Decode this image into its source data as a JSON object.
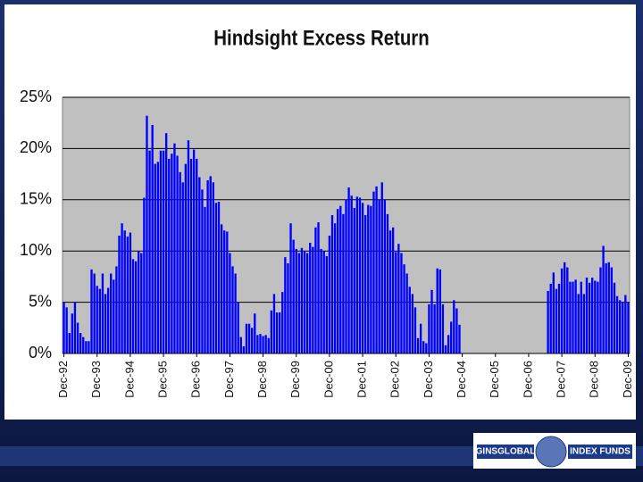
{
  "chart_data": {
    "type": "bar",
    "title": "Hindsight Excess Return",
    "categories": [
      "Dec-92",
      null,
      null,
      null,
      null,
      null,
      null,
      null,
      null,
      null,
      null,
      null,
      "Dec-93",
      null,
      null,
      null,
      null,
      null,
      null,
      null,
      null,
      null,
      null,
      null,
      "Dec-94",
      null,
      null,
      null,
      null,
      null,
      null,
      null,
      null,
      null,
      null,
      null,
      "Dec-95",
      null,
      null,
      null,
      null,
      null,
      null,
      null,
      null,
      null,
      null,
      null,
      "Dec-96",
      null,
      null,
      null,
      null,
      null,
      null,
      null,
      null,
      null,
      null,
      null,
      "Dec-97",
      null,
      null,
      null,
      null,
      null,
      null,
      null,
      null,
      null,
      null,
      null,
      "Dec-98",
      null,
      null,
      null,
      null,
      null,
      null,
      null,
      null,
      null,
      null,
      null,
      "Dec-99",
      null,
      null,
      null,
      null,
      null,
      null,
      null,
      null,
      null,
      null,
      null,
      "Dec-00",
      null,
      null,
      null,
      null,
      null,
      null,
      null,
      null,
      null,
      null,
      null,
      "Dec-01",
      null,
      null,
      null,
      null,
      null,
      null,
      null,
      null,
      null,
      null,
      null,
      "Dec-02",
      null,
      null,
      null,
      null,
      null,
      null,
      null,
      null,
      null,
      null,
      null,
      "Dec-03",
      null,
      null,
      null,
      null,
      null,
      null,
      null,
      null,
      null,
      null,
      null,
      "Dec-04",
      null,
      null,
      null,
      null,
      null,
      null,
      null,
      null,
      null,
      null,
      null,
      "Dec-05",
      null,
      null,
      null,
      null,
      null,
      null,
      null,
      null,
      null,
      null,
      null,
      "Dec-06",
      null,
      null,
      null,
      null,
      null,
      null,
      null,
      null,
      null,
      null,
      null,
      "Dec-07",
      null,
      null,
      null,
      null,
      null,
      null,
      null,
      null,
      null,
      null,
      null,
      "Dec-08",
      null,
      null,
      null,
      null,
      null,
      null,
      null,
      null,
      null,
      null,
      null,
      "Dec-09"
    ],
    "values": [
      5.0,
      4.5,
      2.0,
      3.9,
      5.0,
      3.0,
      2.0,
      1.6,
      1.2,
      1.2,
      8.2,
      7.8,
      6.6,
      6.3,
      7.8,
      5.8,
      6.4,
      7.8,
      7.2,
      8.5,
      11.5,
      12.7,
      12.0,
      11.4,
      11.8,
      9.2,
      9.0,
      10.0,
      9.8,
      15.2,
      23.2,
      19.8,
      22.3,
      18.5,
      18.7,
      19.8,
      19.8,
      21.5,
      19.0,
      19.5,
      20.5,
      19.3,
      17.7,
      16.7,
      18.5,
      20.8,
      19.0,
      19.9,
      19.0,
      17.2,
      16.0,
      14.3,
      16.9,
      17.3,
      16.7,
      14.7,
      14.8,
      12.6,
      12.0,
      11.9,
      9.8,
      8.5,
      7.8,
      5.0,
      1.6,
      0.7,
      2.9,
      2.9,
      2.5,
      3.9,
      1.8,
      1.9,
      1.7,
      1.8,
      1.5,
      4.2,
      5.8,
      4.0,
      4.0,
      6.0,
      9.4,
      8.8,
      12.7,
      11.1,
      10.2,
      9.8,
      10.3,
      10.0,
      9.8,
      10.8,
      10.4,
      12.3,
      12.8,
      10.2,
      10.0,
      9.5,
      11.5,
      13.5,
      12.7,
      14.1,
      14.4,
      13.6,
      15.0,
      16.2,
      15.4,
      14.2,
      15.3,
      15.2,
      14.7,
      13.5,
      14.5,
      14.4,
      15.8,
      16.3,
      15.0,
      16.7,
      15.0,
      13.6,
      12.0,
      12.3,
      9.9,
      10.7,
      9.8,
      8.7,
      7.8,
      6.5,
      5.8,
      4.5,
      1.5,
      2.9,
      1.2,
      1.0,
      4.8,
      6.2,
      4.8,
      8.3,
      8.2,
      4.8,
      0.8,
      1.8,
      3.1,
      5.2,
      4.4,
      2.8,
      null,
      null,
      null,
      null,
      null,
      null,
      null,
      null,
      null,
      null,
      null,
      null,
      null,
      null,
      null,
      null,
      null,
      null,
      null,
      null,
      null,
      null,
      null,
      null,
      null,
      null,
      null,
      null,
      null,
      null,
      null,
      6.1,
      6.8,
      7.9,
      6.3,
      6.8,
      8.3,
      8.9,
      8.4,
      7.0,
      7.0,
      7.2,
      5.8,
      7.0,
      5.8,
      7.4,
      6.9,
      7.4,
      7.1,
      7.0,
      8.4,
      10.5,
      8.8,
      8.9,
      8.4,
      6.9,
      5.6,
      5.2,
      5.0,
      5.7,
      5.0
    ],
    "color": "#0000ff",
    "ylim": [
      0,
      25
    ],
    "yticks": [
      {
        "value": 0,
        "label": "0%"
      },
      {
        "value": 5,
        "label": "5%"
      },
      {
        "value": 10,
        "label": "10%"
      },
      {
        "value": 15,
        "label": "15%"
      },
      {
        "value": 20,
        "label": "20%"
      },
      {
        "value": 25,
        "label": "25%"
      }
    ],
    "grid": true
  },
  "footer": {
    "logo_left": "GINSGLOBAL",
    "logo_right": "INDEX FUNDS"
  }
}
